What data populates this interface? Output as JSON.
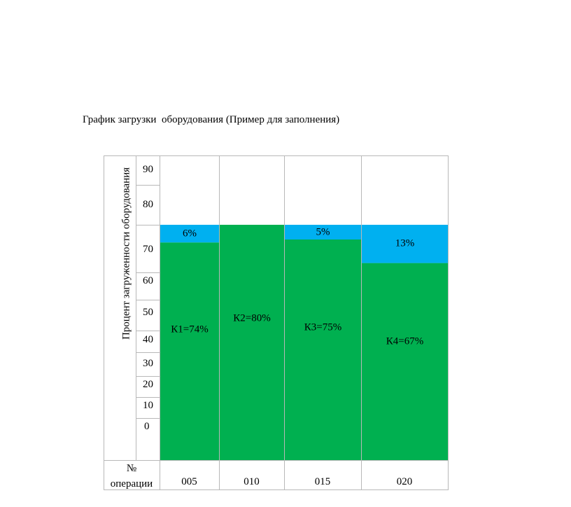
{
  "title": "График загрузки  оборудования (Пример для заполнения)",
  "chart_data": {
    "type": "bar",
    "ylabel": "Процент загруженности оборудования",
    "y_ticks": [
      "90",
      "80",
      "70",
      "60",
      "50",
      "40",
      "30",
      "20",
      "10",
      "0"
    ],
    "categories": [
      "005",
      "010",
      "015",
      "020"
    ],
    "x_header": [
      "№",
      "операции"
    ],
    "series": [
      {
        "values": [
          74,
          80,
          75,
          67
        ],
        "labels": [
          "К1=74%",
          "К2=80%",
          "К3=75%",
          "К4=67%"
        ]
      },
      {
        "values": [
          6,
          0,
          5,
          13
        ],
        "labels": [
          "6%",
          "",
          "5%",
          "13%"
        ]
      }
    ],
    "colors": {
      "load": "#00b050",
      "idle": "#00b0f0",
      "grid": "#b8b8b8"
    }
  }
}
